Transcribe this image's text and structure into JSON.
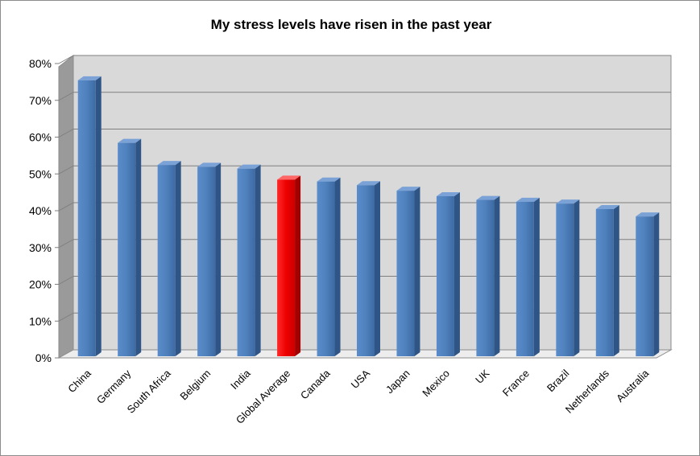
{
  "chart_data": {
    "type": "bar",
    "title": "My stress levels have risen in the past year",
    "xlabel": "",
    "ylabel": "",
    "ylim": [
      0,
      80
    ],
    "yticks": [
      "0%",
      "10%",
      "20%",
      "30%",
      "40%",
      "50%",
      "60%",
      "70%",
      "80%"
    ],
    "ytick_values": [
      0,
      10,
      20,
      30,
      40,
      50,
      60,
      70,
      80
    ],
    "categories": [
      "China",
      "Germany",
      "South Africa",
      "Belgium",
      "India",
      "Global Average",
      "Canada",
      "USA",
      "Japan",
      "Mexico",
      "UK",
      "France",
      "Brazil",
      "Netherlands",
      "Australia"
    ],
    "series": [
      {
        "values": [
          75,
          58,
          52,
          51.5,
          51,
          48,
          47.5,
          46.5,
          45,
          43.5,
          42.5,
          42,
          41.5,
          40,
          38
        ]
      }
    ],
    "grid": true,
    "legend": "none",
    "bar_color": "#4f81bd",
    "highlight_category": "Global Average",
    "highlight_color": "#ff0000"
  }
}
